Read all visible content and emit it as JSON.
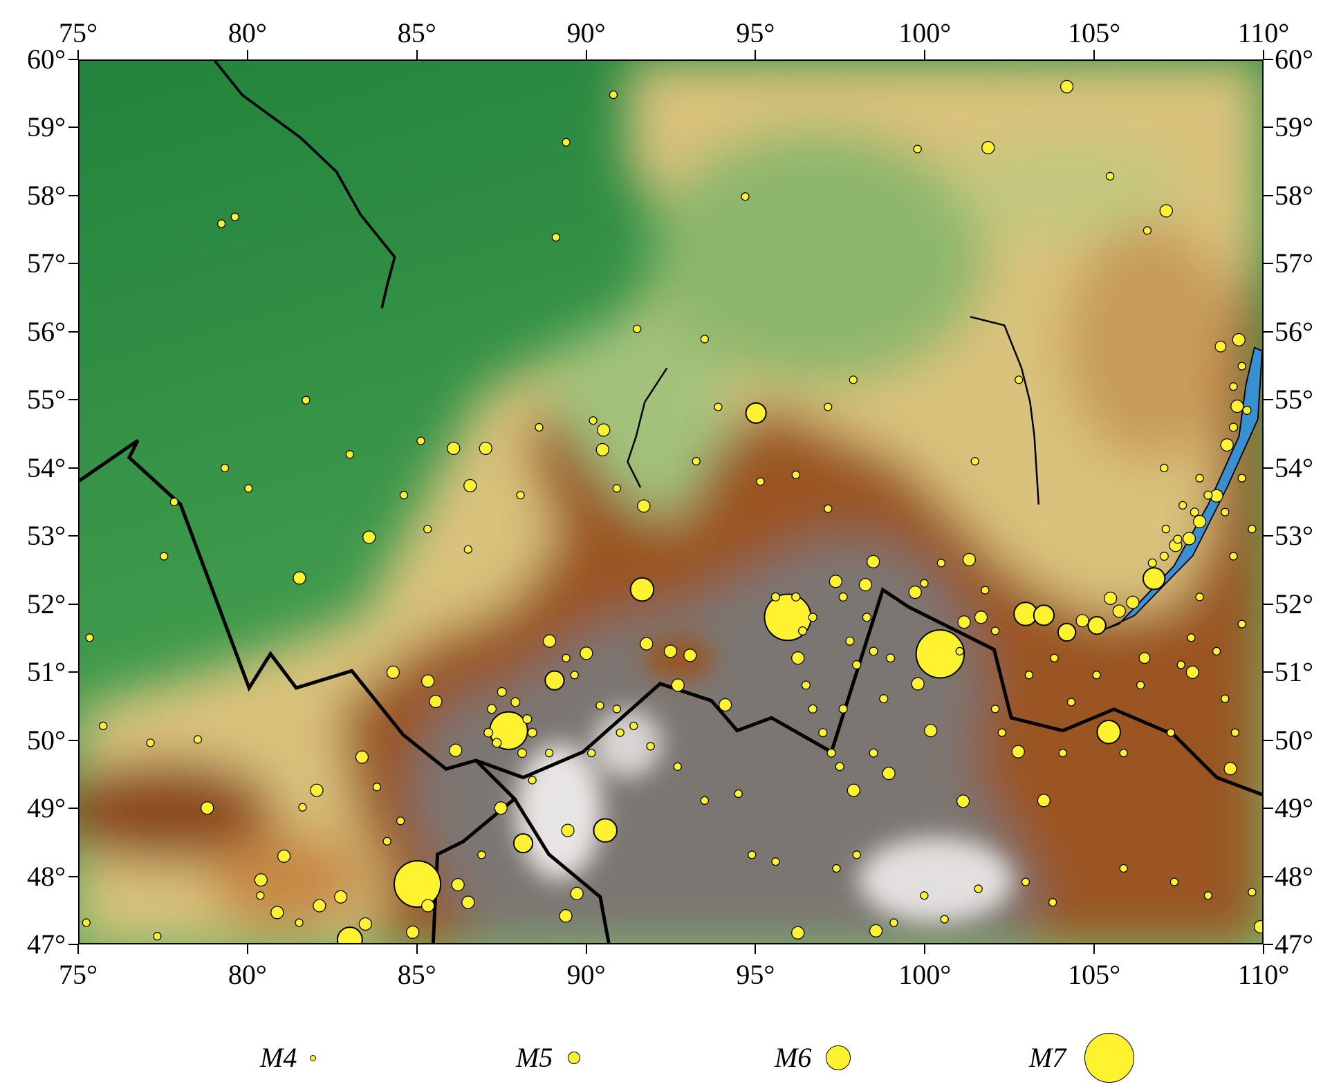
{
  "map": {
    "extent": {
      "lon_min": 75,
      "lon_max": 110,
      "lat_min": 47,
      "lat_max": 60
    },
    "colors": {
      "epicenter_fill": "#fff230",
      "epicenter_stroke": "#000000",
      "lake": "#3a8fd0",
      "lowland": "#2f8f45",
      "upland": "#d9c27c",
      "mountain": "#9a5524",
      "highland": "#7c7672"
    },
    "lon_ticks": [
      75,
      80,
      85,
      90,
      95,
      100,
      105,
      110
    ],
    "lon_labels": [
      "75°",
      "80°",
      "85°",
      "90°",
      "95°",
      "100°",
      "105°",
      "110°"
    ],
    "lat_ticks": [
      60,
      59,
      58,
      57,
      56,
      55,
      54,
      53,
      52,
      51,
      50,
      49,
      48,
      47
    ],
    "lat_labels": [
      "60°",
      "59°",
      "58°",
      "57°",
      "56°",
      "55°",
      "54°",
      "53°",
      "52°",
      "51°",
      "50°",
      "49°",
      "48°",
      "47°"
    ],
    "earthquakes": [
      [
        85.0,
        47.87,
        6.9
      ],
      [
        100.47,
        51.26,
        6.95
      ],
      [
        95.96,
        51.8,
        6.9
      ],
      [
        87.7,
        50.13,
        6.6
      ],
      [
        83.0,
        47.05,
        6.0
      ],
      [
        91.65,
        52.21,
        5.9
      ],
      [
        95.02,
        54.81,
        5.7
      ],
      [
        103.0,
        51.85,
        5.9
      ],
      [
        103.54,
        51.83,
        5.7
      ],
      [
        105.46,
        50.11,
        5.9
      ],
      [
        90.56,
        48.66,
        5.9
      ],
      [
        88.13,
        48.47,
        5.6
      ],
      [
        89.06,
        50.87,
        5.6
      ],
      [
        106.8,
        52.37,
        5.8
      ],
      [
        104.22,
        51.58,
        5.5
      ],
      [
        105.11,
        51.68,
        5.5
      ],
      [
        104.22,
        59.62,
        5.0
      ],
      [
        101.89,
        58.72,
        5.0
      ],
      [
        107.16,
        57.79,
        5.0
      ],
      [
        100.19,
        50.13,
        5.0
      ],
      [
        99.81,
        50.82,
        5.0
      ],
      [
        83.57,
        52.98,
        5.0
      ],
      [
        81.51,
        52.38,
        5.0
      ],
      [
        78.78,
        48.99,
        5.0
      ],
      [
        107.94,
        50.99,
        5.0
      ],
      [
        109.06,
        49.57,
        5.0
      ],
      [
        102.78,
        49.82,
        5.0
      ],
      [
        103.54,
        49.1,
        5.0
      ],
      [
        101.15,
        49.09,
        5.0
      ],
      [
        98.57,
        47.18,
        5.0
      ],
      [
        96.26,
        47.15,
        5.0
      ],
      [
        94.11,
        50.51,
        5.0
      ],
      [
        92.71,
        50.8,
        5.0
      ],
      [
        86.56,
        53.74,
        5.0
      ],
      [
        87.02,
        54.29,
        5.0
      ],
      [
        86.07,
        54.29,
        5.0
      ],
      [
        91.7,
        53.44,
        5.0
      ],
      [
        90.48,
        54.27,
        5.0
      ],
      [
        90.51,
        54.56,
        5.0
      ],
      [
        109.31,
        55.89,
        5.0
      ],
      [
        108.77,
        55.79,
        4.8
      ],
      [
        107.84,
        52.96,
        5.0
      ],
      [
        108.15,
        53.21,
        5.0
      ],
      [
        81.05,
        48.28,
        5.0
      ],
      [
        80.37,
        47.93,
        5.0
      ],
      [
        83.36,
        49.74,
        5.0
      ],
      [
        82.02,
        49.25,
        5.0
      ],
      [
        84.28,
        50.99,
        5.0
      ],
      [
        85.31,
        50.86,
        5.0
      ],
      [
        85.54,
        50.56,
        5.0
      ],
      [
        86.13,
        49.84,
        5.0
      ],
      [
        87.47,
        48.99,
        5.0
      ],
      [
        89.45,
        48.66,
        5.0
      ],
      [
        89.72,
        47.73,
        5.0
      ],
      [
        89.39,
        47.4,
        5.0
      ],
      [
        88.91,
        51.45,
        5.0
      ],
      [
        90.0,
        51.27,
        5.0
      ],
      [
        92.49,
        51.3,
        5.0
      ],
      [
        91.78,
        51.41,
        5.0
      ],
      [
        93.07,
        51.24,
        5.0
      ],
      [
        96.26,
        51.2,
        5.0
      ],
      [
        97.38,
        52.33,
        5.0
      ],
      [
        98.26,
        52.28,
        5.0
      ],
      [
        98.49,
        52.62,
        5.0
      ],
      [
        97.91,
        49.25,
        5.0
      ],
      [
        98.95,
        49.5,
        5.0
      ],
      [
        101.33,
        52.65,
        5.0
      ],
      [
        101.68,
        51.8,
        5.0
      ],
      [
        99.73,
        52.17,
        5.0
      ],
      [
        101.18,
        51.73,
        5.0
      ],
      [
        109.26,
        54.91,
        5.0
      ],
      [
        108.96,
        54.34,
        5.0
      ],
      [
        108.65,
        53.59,
        5.0
      ],
      [
        107.44,
        52.86,
        5.0
      ],
      [
        106.17,
        52.02,
        5.0
      ],
      [
        105.77,
        51.89,
        5.0
      ],
      [
        104.68,
        51.75,
        5.0
      ],
      [
        105.51,
        52.08,
        5.0
      ],
      [
        106.52,
        51.2,
        4.8
      ],
      [
        82.73,
        47.68,
        5.0
      ],
      [
        82.1,
        47.55,
        5.0
      ],
      [
        80.85,
        47.45,
        5.0
      ],
      [
        83.46,
        47.28,
        5.0
      ],
      [
        84.86,
        47.16,
        5.0
      ],
      [
        85.31,
        47.55,
        5.0
      ],
      [
        86.2,
        47.86,
        5.0
      ],
      [
        86.5,
        47.6,
        5.0
      ],
      [
        109.95,
        47.24,
        5.0
      ],
      [
        90.8,
        59.5,
        4.3
      ],
      [
        89.4,
        58.8,
        4.3
      ],
      [
        89.1,
        57.4,
        4.3
      ],
      [
        79.2,
        57.6,
        4.3
      ],
      [
        79.6,
        57.7,
        4.3
      ],
      [
        94.7,
        58.0,
        4.3
      ],
      [
        99.8,
        58.7,
        4.3
      ],
      [
        105.5,
        58.3,
        4.3
      ],
      [
        106.6,
        57.5,
        4.3
      ],
      [
        91.5,
        56.05,
        4.3
      ],
      [
        93.5,
        55.9,
        4.3
      ],
      [
        97.9,
        55.3,
        4.3
      ],
      [
        102.8,
        55.3,
        4.3
      ],
      [
        101.5,
        54.1,
        4.3
      ],
      [
        107.1,
        54.0,
        4.3
      ],
      [
        81.7,
        55.0,
        4.3
      ],
      [
        79.3,
        54.0,
        4.3
      ],
      [
        80.0,
        53.7,
        4.3
      ],
      [
        77.8,
        53.5,
        4.3
      ],
      [
        77.5,
        52.7,
        4.3
      ],
      [
        75.3,
        51.5,
        4.3
      ],
      [
        75.7,
        50.2,
        4.3
      ],
      [
        77.1,
        49.95,
        4.3
      ],
      [
        78.5,
        50.0,
        4.3
      ],
      [
        75.2,
        47.3,
        4.3
      ],
      [
        77.3,
        47.1,
        4.3
      ],
      [
        85.1,
        54.4,
        4.3
      ],
      [
        83.0,
        54.2,
        4.3
      ],
      [
        84.6,
        53.6,
        4.3
      ],
      [
        85.3,
        53.1,
        4.3
      ],
      [
        86.5,
        52.8,
        4.3
      ],
      [
        88.05,
        53.6,
        4.3
      ],
      [
        88.6,
        54.6,
        4.3
      ],
      [
        90.2,
        54.7,
        4.3
      ],
      [
        90.9,
        53.7,
        4.3
      ],
      [
        93.25,
        54.1,
        4.3
      ],
      [
        93.9,
        54.9,
        4.3
      ],
      [
        95.15,
        53.8,
        4.3
      ],
      [
        96.2,
        53.9,
        4.3
      ],
      [
        97.15,
        54.9,
        4.3
      ],
      [
        97.15,
        53.4,
        4.3
      ],
      [
        99.1,
        47.3,
        4.3
      ],
      [
        100.6,
        47.35,
        4.3
      ],
      [
        101.6,
        47.8,
        4.3
      ],
      [
        103.0,
        47.9,
        4.3
      ],
      [
        103.8,
        47.6,
        4.3
      ],
      [
        105.9,
        48.1,
        4.3
      ],
      [
        107.4,
        47.9,
        4.3
      ],
      [
        108.4,
        47.7,
        4.3
      ],
      [
        109.7,
        47.75,
        4.3
      ],
      [
        109.2,
        50.1,
        4.3
      ],
      [
        107.3,
        50.1,
        4.3
      ],
      [
        105.9,
        49.8,
        4.3
      ],
      [
        104.1,
        49.8,
        4.3
      ],
      [
        102.3,
        50.1,
        4.3
      ],
      [
        102.1,
        50.45,
        4.3
      ],
      [
        100.0,
        47.7,
        4.3
      ],
      [
        98.0,
        48.3,
        4.3
      ],
      [
        97.4,
        48.1,
        4.3
      ],
      [
        95.6,
        48.2,
        4.3
      ],
      [
        94.9,
        48.3,
        4.3
      ],
      [
        94.5,
        49.2,
        4.3
      ],
      [
        93.5,
        49.1,
        4.3
      ],
      [
        92.7,
        49.6,
        4.3
      ],
      [
        91.9,
        49.9,
        4.3
      ],
      [
        91.0,
        50.1,
        4.3
      ],
      [
        90.15,
        49.8,
        4.3
      ],
      [
        88.9,
        49.8,
        4.3
      ],
      [
        88.4,
        49.4,
        4.3
      ],
      [
        86.9,
        48.3,
        4.3
      ],
      [
        84.1,
        48.5,
        4.3
      ],
      [
        84.5,
        48.8,
        4.3
      ],
      [
        83.8,
        49.3,
        4.3
      ],
      [
        81.6,
        49.0,
        4.3
      ],
      [
        81.5,
        47.3,
        4.3
      ],
      [
        80.35,
        47.7,
        4.3
      ],
      [
        87.2,
        50.45,
        4.5
      ],
      [
        88.25,
        50.3,
        4.5
      ],
      [
        87.35,
        49.95,
        4.5
      ],
      [
        88.1,
        49.8,
        4.5
      ],
      [
        87.9,
        50.55,
        4.5
      ],
      [
        87.5,
        50.7,
        4.5
      ],
      [
        87.1,
        50.1,
        4.5
      ],
      [
        88.4,
        50.1,
        4.5
      ],
      [
        89.4,
        51.2,
        4.3
      ],
      [
        90.4,
        50.5,
        4.3
      ],
      [
        90.9,
        50.45,
        4.3
      ],
      [
        91.4,
        50.2,
        4.3
      ],
      [
        89.65,
        50.95,
        4.3
      ],
      [
        96.5,
        50.8,
        4.4
      ],
      [
        96.7,
        50.45,
        4.4
      ],
      [
        97.0,
        50.1,
        4.4
      ],
      [
        97.6,
        50.45,
        4.4
      ],
      [
        98.0,
        51.1,
        4.4
      ],
      [
        98.5,
        51.3,
        4.4
      ],
      [
        97.8,
        51.45,
        4.4
      ],
      [
        98.3,
        51.8,
        4.4
      ],
      [
        97.6,
        52.1,
        4.4
      ],
      [
        97.25,
        49.8,
        4.4
      ],
      [
        97.5,
        49.6,
        4.4
      ],
      [
        98.5,
        49.8,
        4.4
      ],
      [
        98.8,
        50.6,
        4.4
      ],
      [
        99.0,
        51.2,
        4.4
      ],
      [
        95.6,
        52.1,
        4.4
      ],
      [
        96.2,
        52.1,
        4.4
      ],
      [
        96.4,
        51.6,
        4.4
      ],
      [
        96.7,
        51.8,
        4.4
      ],
      [
        100.5,
        52.6,
        4.3
      ],
      [
        100.0,
        52.3,
        4.3
      ],
      [
        101.8,
        52.2,
        4.3
      ],
      [
        102.1,
        51.6,
        4.3
      ],
      [
        101.05,
        51.3,
        4.3
      ],
      [
        108.15,
        52.1,
        4.3
      ],
      [
        107.9,
        51.5,
        4.3
      ],
      [
        108.65,
        51.3,
        4.3
      ],
      [
        109.4,
        51.7,
        4.3
      ],
      [
        108.9,
        50.6,
        4.3
      ],
      [
        107.6,
        51.1,
        4.3
      ],
      [
        106.4,
        50.8,
        4.3
      ],
      [
        105.1,
        50.95,
        4.3
      ],
      [
        104.35,
        50.55,
        4.3
      ],
      [
        103.85,
        51.2,
        4.3
      ],
      [
        103.1,
        50.95,
        4.3
      ],
      [
        109.15,
        52.7,
        4.3
      ],
      [
        109.7,
        53.1,
        4.3
      ],
      [
        109.4,
        53.85,
        4.3
      ],
      [
        108.9,
        53.35,
        4.3
      ],
      [
        108.15,
        53.85,
        4.3
      ],
      [
        107.65,
        53.45,
        4.3
      ],
      [
        107.15,
        53.1,
        4.3
      ],
      [
        109.15,
        55.2,
        4.3
      ],
      [
        109.4,
        55.5,
        4.3
      ],
      [
        109.55,
        54.85,
        4.4
      ],
      [
        109.15,
        54.6,
        4.4
      ],
      [
        108.4,
        53.6,
        4.4
      ],
      [
        108.0,
        53.35,
        4.4
      ],
      [
        107.5,
        52.95,
        4.4
      ],
      [
        107.1,
        52.7,
        4.4
      ],
      [
        106.75,
        52.6,
        4.4
      ]
    ]
  },
  "legend": {
    "items": [
      {
        "label": "M4",
        "magnitude": 4
      },
      {
        "label": "M5",
        "magnitude": 5
      },
      {
        "label": "M6",
        "magnitude": 6
      },
      {
        "label": "M7",
        "magnitude": 7
      }
    ]
  }
}
